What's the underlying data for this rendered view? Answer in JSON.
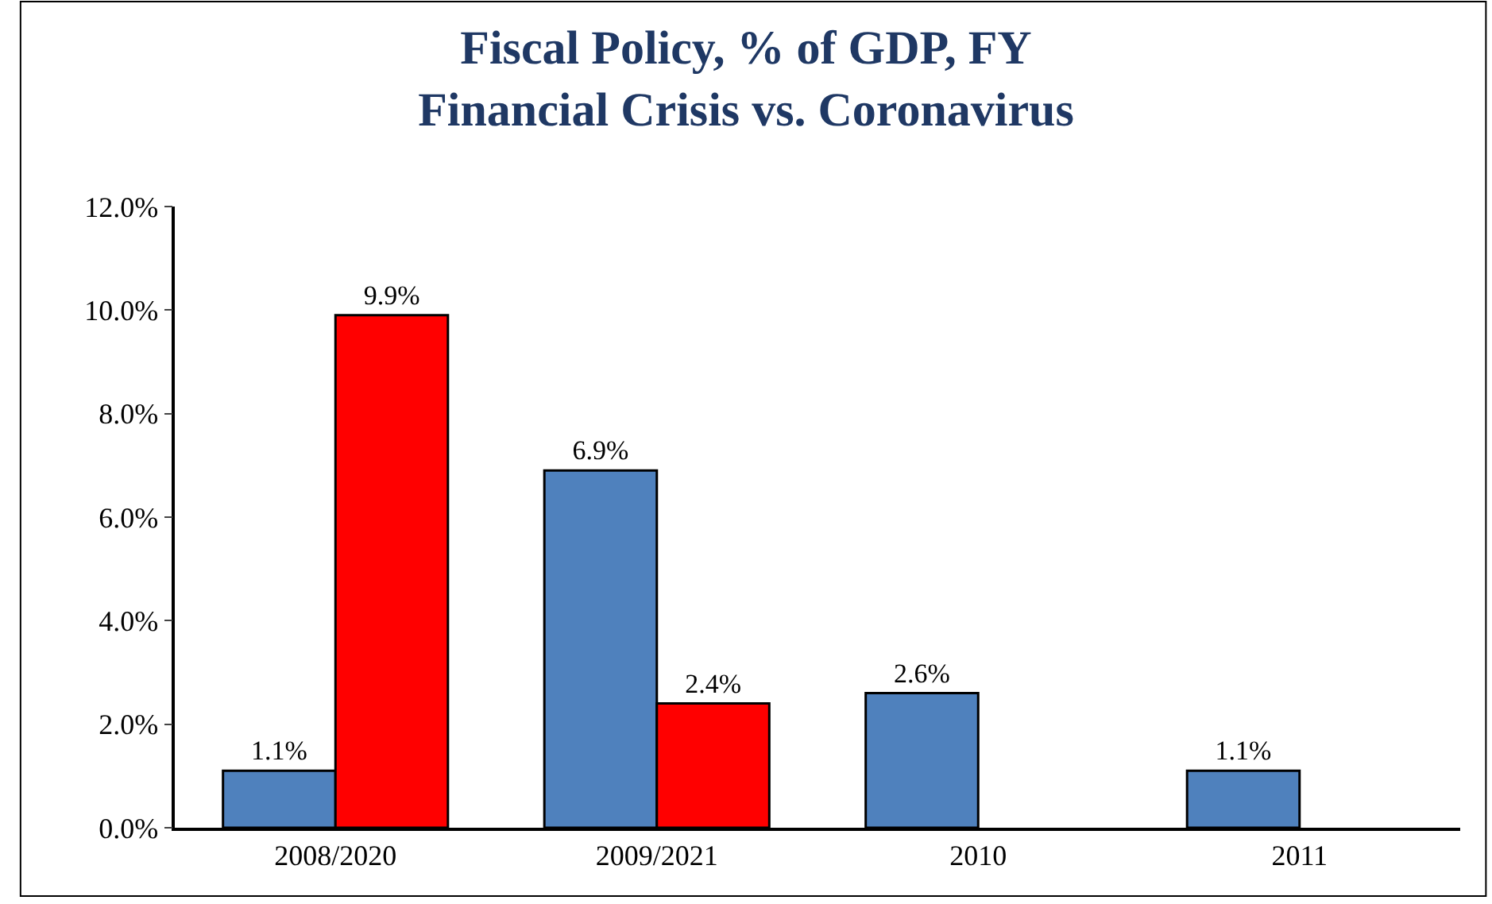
{
  "chart_data": {
    "type": "bar",
    "title": "Fiscal Policy, % of GDP, FY\nFinancial Crisis vs. Coronavirus",
    "categories": [
      "2008/2020",
      "2009/2021",
      "2010",
      "2011"
    ],
    "series": [
      {
        "color": "#4f81bd",
        "values": [
          1.1,
          6.9,
          2.6,
          1.1
        ],
        "value_labels": [
          "1.1%",
          "6.9%",
          "2.6%",
          "1.1%"
        ]
      },
      {
        "color": "#ff0000",
        "values": [
          9.9,
          2.4,
          null,
          null
        ],
        "value_labels": [
          "9.9%",
          "2.4%",
          null,
          null
        ]
      }
    ],
    "ylim": [
      0,
      12
    ],
    "yticks": [
      {
        "value": 0,
        "label": "0.0%"
      },
      {
        "value": 2,
        "label": "2.0%"
      },
      {
        "value": 4,
        "label": "4.0%"
      },
      {
        "value": 6,
        "label": "6.0%"
      },
      {
        "value": 8,
        "label": "8.0%"
      },
      {
        "value": 10,
        "label": "10.0%"
      },
      {
        "value": 12,
        "label": "12.0%"
      }
    ],
    "tick_labels": true
  }
}
